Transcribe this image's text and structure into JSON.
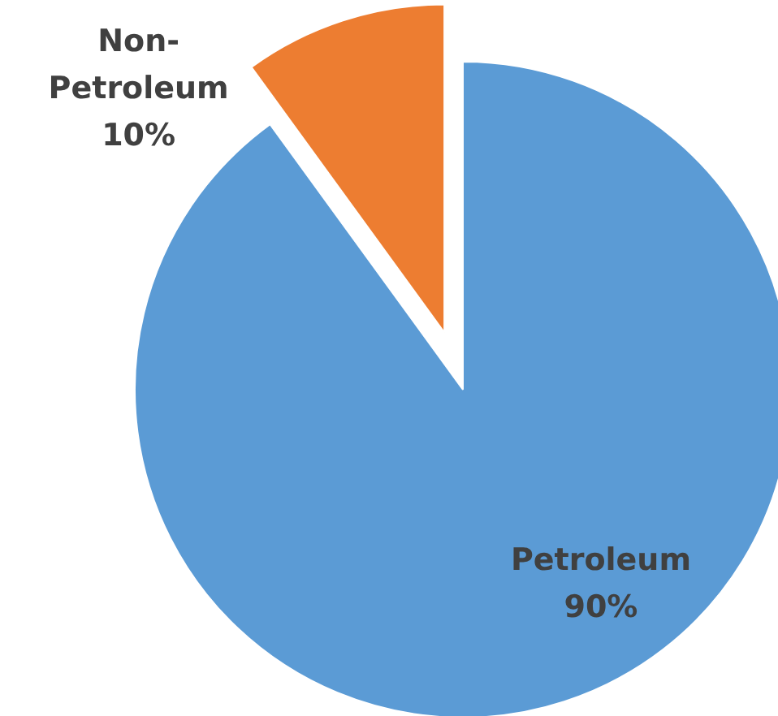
{
  "chart_data": {
    "type": "pie",
    "categories": [
      "Petroleum",
      "Non-Petroleum"
    ],
    "values": [
      90,
      10
    ],
    "colors": [
      "#5b9bd5",
      "#ed7d31"
    ],
    "value_labels": [
      "90%",
      "10%"
    ],
    "legend": false
  }
}
